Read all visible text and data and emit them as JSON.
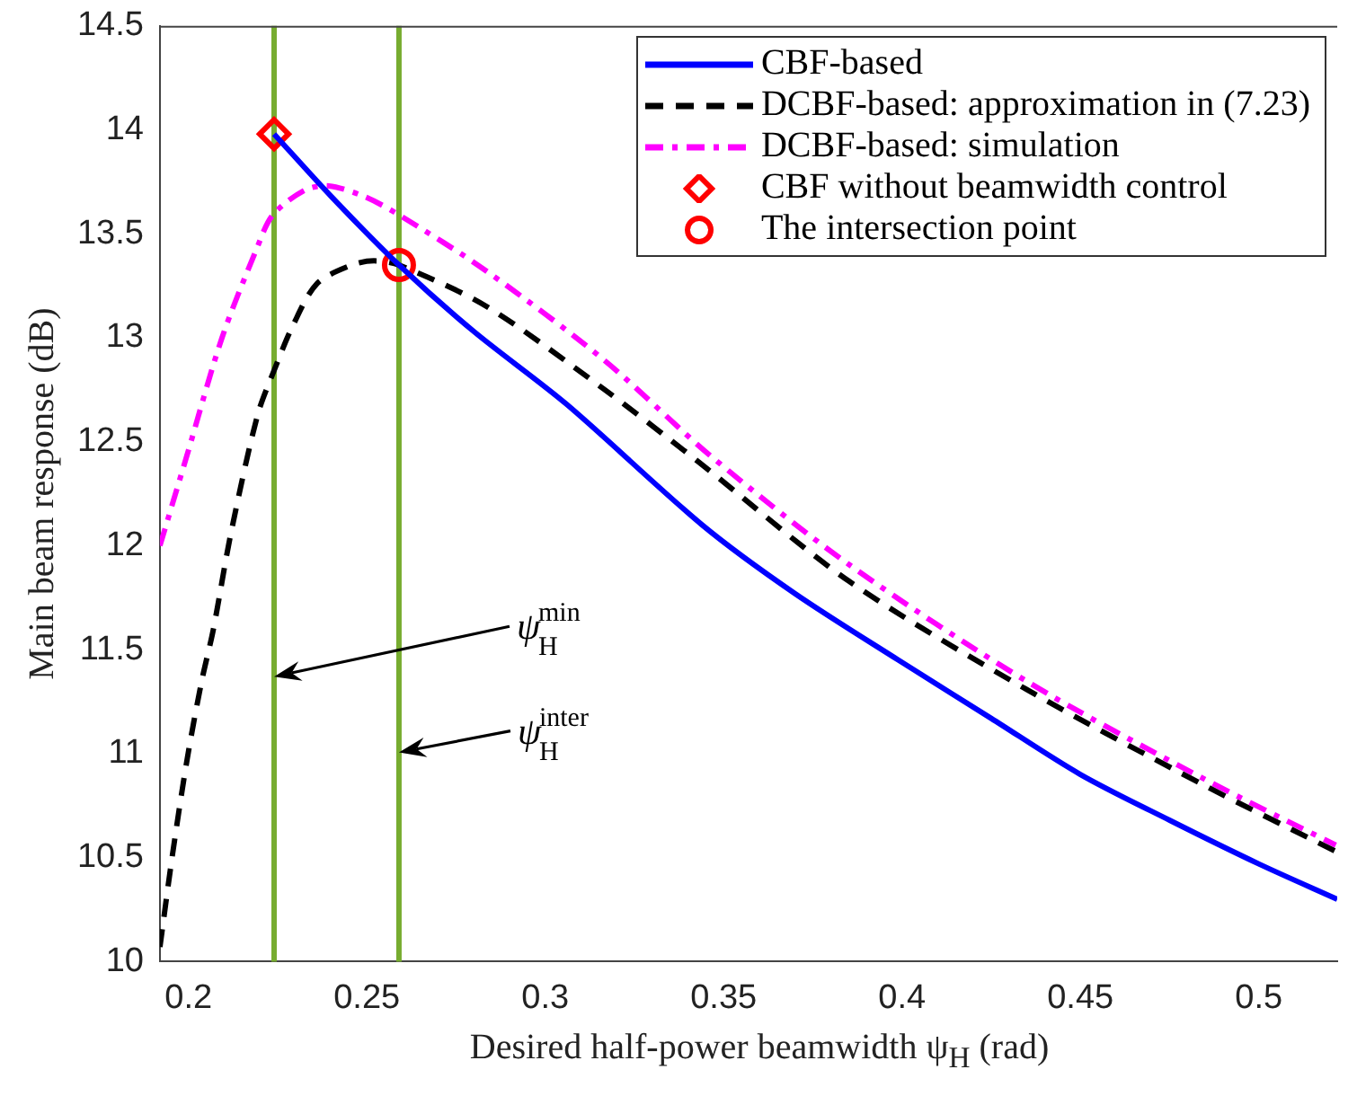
{
  "chart_data": {
    "type": "line",
    "xlabel": "Desired half-power beamwidth ψ$_{H}$ (rad)",
    "ylabel": "Main beam response (dB)",
    "xlim": [
      0.192,
      0.522
    ],
    "ylim": [
      10,
      14.5
    ],
    "xticks": [
      0.2,
      0.25,
      0.3,
      0.35,
      0.4,
      0.45,
      0.5
    ],
    "yticks": [
      10,
      10.5,
      11,
      11.5,
      12,
      12.5,
      13,
      13.5,
      14,
      14.5
    ],
    "grid": false,
    "legend": "top right",
    "series": [
      {
        "name": "CBF-based",
        "color": "#0000ff",
        "line_style": "solid",
        "marker": "none",
        "x": [
          0.224,
          0.24,
          0.259,
          0.28,
          0.306,
          0.344,
          0.37,
          0.399,
          0.425,
          0.45,
          0.475,
          0.5,
          0.522
        ],
        "values": [
          13.98,
          13.68,
          13.35,
          13.03,
          12.68,
          12.1,
          11.77,
          11.45,
          11.17,
          10.9,
          10.68,
          10.47,
          10.3
        ]
      },
      {
        "name": "DCBF-based: approximation in (7.23)",
        "color": "#000000",
        "line_style": "dashed",
        "marker": "none",
        "x": [
          0.192,
          0.1954,
          0.1995,
          0.2036,
          0.207,
          0.2119,
          0.2194,
          0.2244,
          0.2293,
          0.236,
          0.2458,
          0.252,
          0.259,
          0.2836,
          0.3167,
          0.3432,
          0.3851,
          0.4348,
          0.4845,
          0.5216
        ],
        "values": [
          10.07,
          10.5,
          10.96,
          11.34,
          11.6,
          12.06,
          12.63,
          12.86,
          13.06,
          13.26,
          13.35,
          13.37,
          13.35,
          13.15,
          12.75,
          12.4,
          11.83,
          11.31,
          10.85,
          10.53
        ]
      },
      {
        "name": "DCBF-based: simulation",
        "color": "#ff00ff",
        "line_style": "dashdot",
        "marker": "none",
        "x": [
          0.192,
          0.1995,
          0.2094,
          0.2194,
          0.2236,
          0.2326,
          0.2393,
          0.2492,
          0.2591,
          0.2836,
          0.3167,
          0.3465,
          0.3851,
          0.4348,
          0.4845,
          0.5216
        ],
        "values": [
          12.0,
          12.43,
          13.0,
          13.44,
          13.59,
          13.71,
          13.73,
          13.68,
          13.59,
          13.32,
          12.89,
          12.43,
          11.91,
          11.35,
          10.88,
          10.56
        ]
      },
      {
        "name": "CBF without beamwidth control",
        "type": "scatter",
        "color": "#ff0000",
        "marker": "diamond",
        "x": [
          0.224
        ],
        "values": [
          13.98
        ]
      },
      {
        "name": "The intersection point",
        "type": "scatter",
        "color": "#ff0000",
        "marker": "circle",
        "x": [
          0.259
        ],
        "values": [
          13.35
        ]
      }
    ],
    "ref_lines": [
      {
        "axis": "x",
        "value": 0.224,
        "color": "#77ac30"
      },
      {
        "axis": "x",
        "value": 0.259,
        "color": "#77ac30"
      }
    ],
    "annotations": [
      "ψ$_{H}$$^{min}$",
      "ψ$_{H}$$^{inter}$"
    ]
  }
}
